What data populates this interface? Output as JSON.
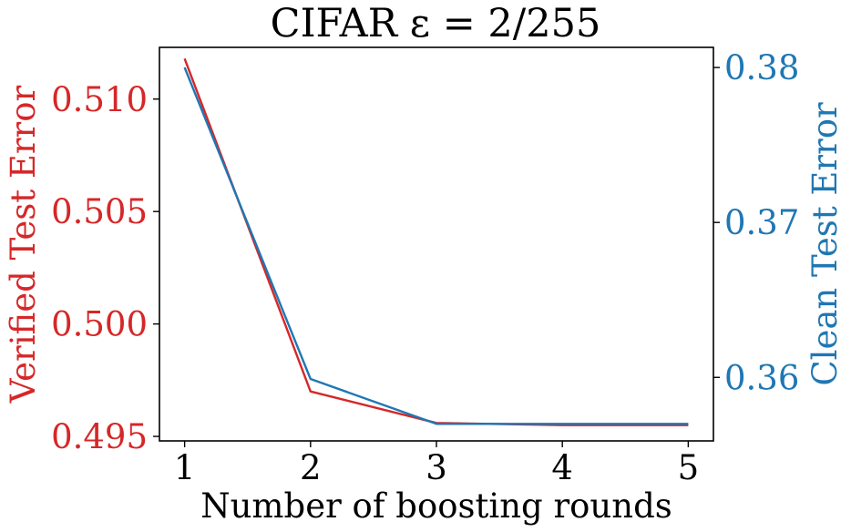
{
  "chart_data": {
    "type": "line",
    "title": "CIFAR ε = 2/255",
    "xlabel": "Number of boosting rounds",
    "ylabel_left": "Verified Test Error",
    "ylabel_right": "Clean Test Error",
    "x": [
      1,
      2,
      3,
      4,
      5
    ],
    "xlim": [
      0.8,
      5.2
    ],
    "ylim_left": [
      0.4948,
      0.5123
    ],
    "ylim_right": [
      0.3559,
      0.3813
    ],
    "yticks_left": [
      "0.495",
      "0.500",
      "0.505",
      "0.510"
    ],
    "yticks_right": [
      "0.36",
      "0.37",
      "0.38"
    ],
    "xticks": [
      "1",
      "2",
      "3",
      "4",
      "5"
    ],
    "grid": false,
    "series": [
      {
        "axis": "left",
        "color": "#d62728",
        "values": [
          0.5118,
          0.497,
          0.4956,
          0.4955,
          0.4955
        ]
      },
      {
        "axis": "right",
        "color": "#1f77b4",
        "values": [
          0.38,
          0.3599,
          0.357,
          0.357,
          0.357
        ]
      }
    ]
  }
}
